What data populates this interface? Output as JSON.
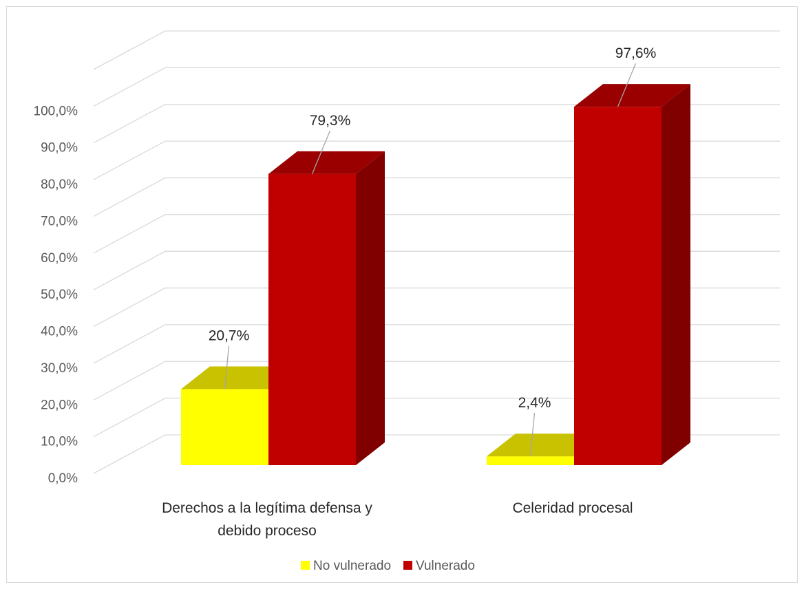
{
  "chart_data": {
    "type": "bar",
    "title": "",
    "xlabel": "",
    "ylabel": "",
    "ylim": [
      0,
      100
    ],
    "y_ticks": [
      "0,0%",
      "10,0%",
      "20,0%",
      "30,0%",
      "40,0%",
      "50,0%",
      "60,0%",
      "70,0%",
      "80,0%",
      "90,0%",
      "100,0%"
    ],
    "categories": [
      [
        "Derechos a la legítima defensa y",
        "debido proceso"
      ],
      [
        "Celeridad procesal"
      ]
    ],
    "series": [
      {
        "name": "No vulnerado",
        "values": [
          20.7,
          2.4
        ],
        "labels": [
          "20,7%",
          "2,4%"
        ],
        "color": "#ffff00",
        "top_color": "#c8c200",
        "side_color": "#a8a300"
      },
      {
        "name": "Vulnerado",
        "values": [
          79.3,
          97.6
        ],
        "labels": [
          "79,3%",
          "97,6%"
        ],
        "color": "#c00000",
        "top_color": "#9a0000",
        "side_color": "#800000"
      }
    ],
    "grid": true,
    "legend_position": "bottom",
    "style": "3d-clustered-column"
  }
}
